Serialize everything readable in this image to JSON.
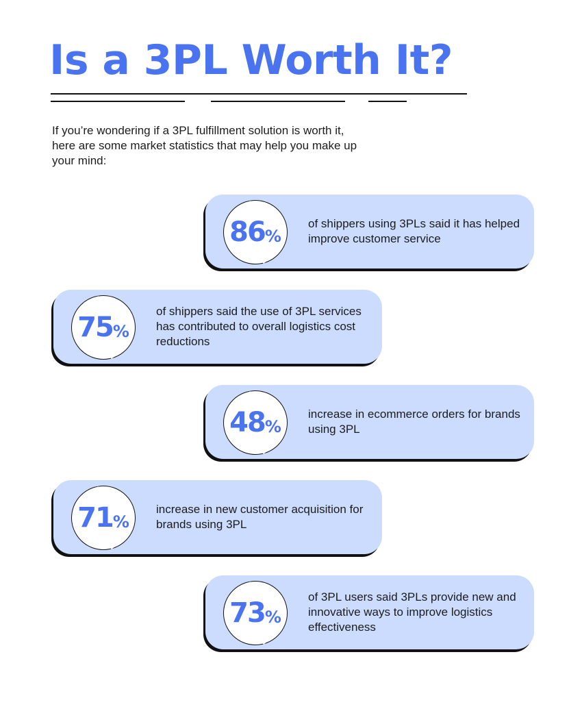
{
  "title": "Is a 3PL Worth It?",
  "intro": "If you’re wondering if a 3PL fulfillment solution is worth it, here are some market statistics that may help you make up your mind:",
  "colors": {
    "accent": "#4a73f0",
    "card_bg": "#cbdcff",
    "shadow": "#111111",
    "text": "#1c1c1c"
  },
  "stats": [
    {
      "value": "86",
      "unit": "%",
      "text": "of shippers using 3PLs said it has helped improve customer service"
    },
    {
      "value": "75",
      "unit": "%",
      "text": "of shippers said the use of 3PL services has contributed to overall logistics cost reductions"
    },
    {
      "value": "48",
      "unit": "%",
      "text": "increase in ecommerce orders for brands using 3PL"
    },
    {
      "value": "71",
      "unit": "%",
      "text": "increase in new customer acquisition for brands using 3PL"
    },
    {
      "value": "73",
      "unit": "%",
      "text": "of 3PL users said 3PLs provide new and innovative ways to improve logistics effectiveness"
    }
  ]
}
